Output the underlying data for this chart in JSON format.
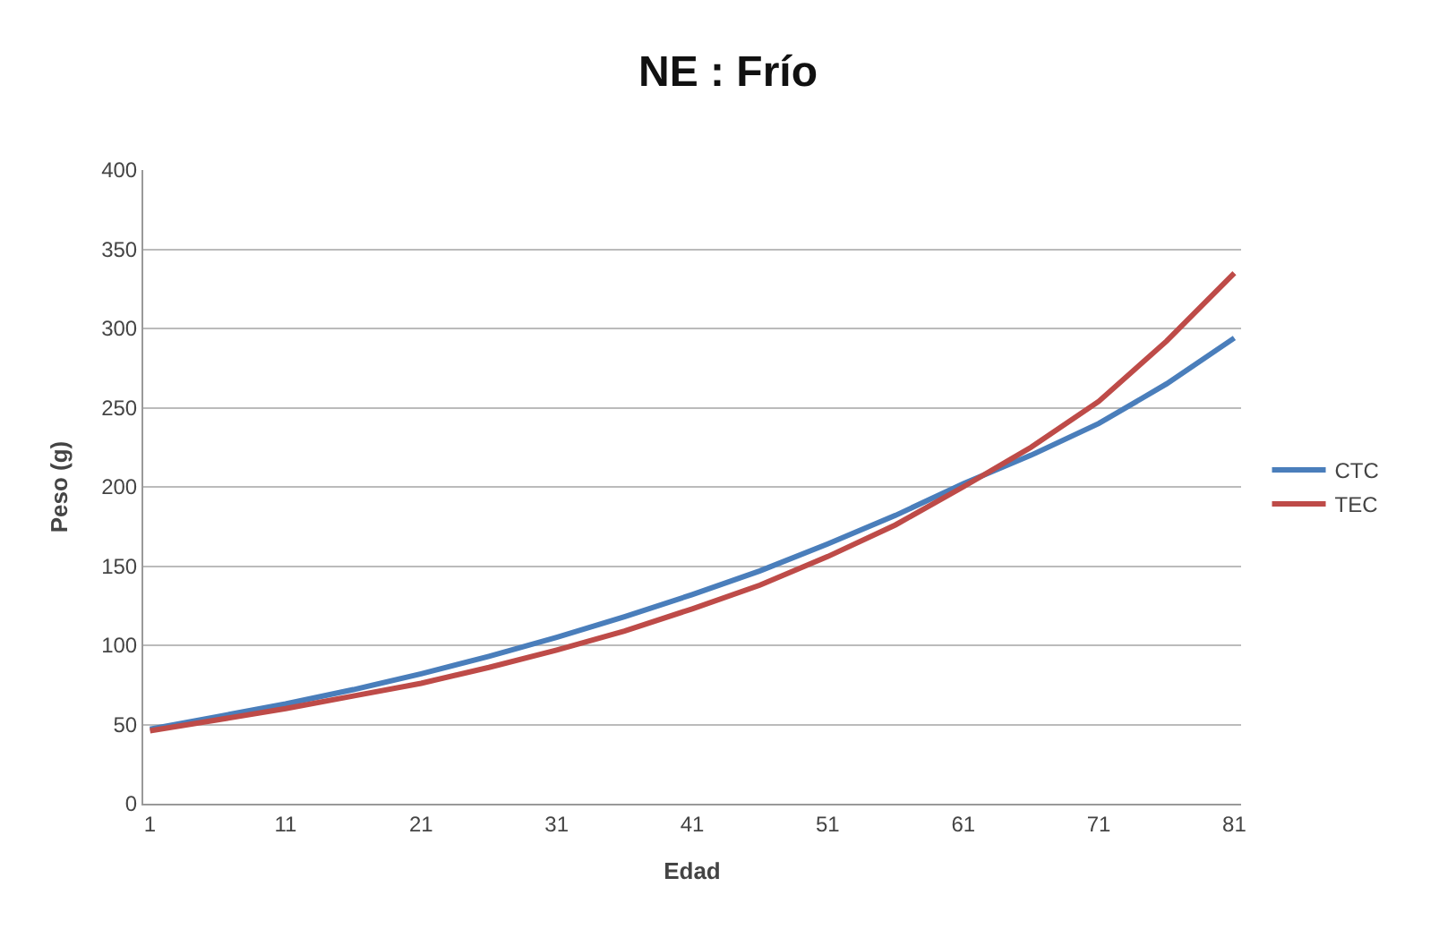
{
  "chart_data": {
    "type": "line",
    "title": "NE : Frío",
    "xlabel": "Edad",
    "ylabel": "Peso (g)",
    "x": [
      1,
      6,
      11,
      16,
      21,
      26,
      31,
      36,
      41,
      46,
      51,
      56,
      61,
      66,
      71,
      76,
      81
    ],
    "series": [
      {
        "name": "CTC",
        "color": "#4a7ebb",
        "values": [
          47,
          55,
          63,
          72,
          82,
          93,
          105,
          118,
          132,
          147,
          164,
          182,
          202,
          220,
          240,
          265,
          294
        ]
      },
      {
        "name": "TEC",
        "color": "#be4b48",
        "values": [
          46,
          53,
          60,
          68,
          76,
          86,
          97,
          109,
          123,
          138,
          156,
          176,
          200,
          225,
          254,
          292,
          335
        ]
      }
    ],
    "xlim": [
      0.5,
      81.5
    ],
    "xticks": [
      1,
      11,
      21,
      31,
      41,
      51,
      61,
      71,
      81
    ],
    "ylim": [
      0,
      400
    ],
    "yticks": [
      0,
      50,
      100,
      150,
      200,
      250,
      300,
      350,
      400
    ],
    "grid": "y",
    "legend": "right",
    "marker": "none",
    "line_style": "solid"
  }
}
